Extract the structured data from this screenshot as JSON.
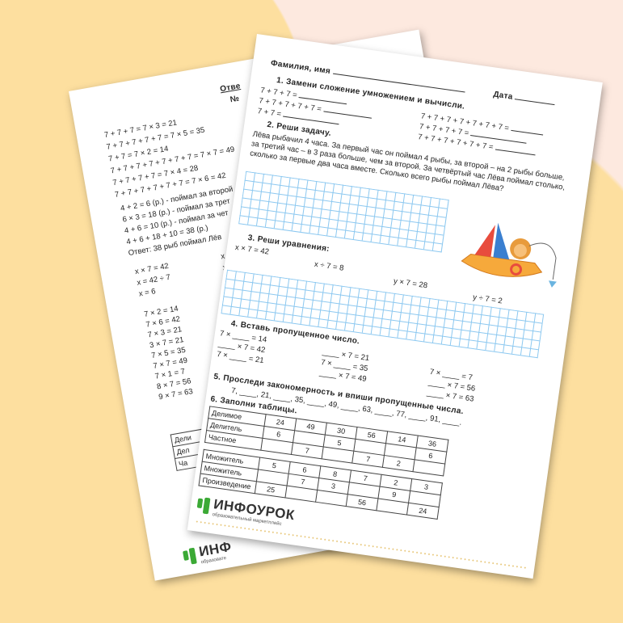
{
  "colors": {
    "background": "#fde9df",
    "blob": "#fddf9f",
    "grid": "#8cc8f0",
    "logo_green": "#3ba935"
  },
  "back_page": {
    "title_partial": "Отве",
    "number_partial": "№",
    "task1_answers": [
      "7 + 7 + 7 = 7 × 3 = 21",
      "7 + 7 + 7 + 7 + 7 = 7 × 5 = 35",
      "7 + 7 = 7 × 2 = 14",
      "7 + 7 + 7 + 7 + 7 + 7 + 7 = 7 × 7 = 49",
      "7 + 7 + 7 + 7 = 7 × 4 = 28",
      "7 + 7 + 7 + 7 + 7 + 7 = 7 × 6 = 42"
    ],
    "task2_answers": [
      "4 + 2 = 6 (р.) - поймал за второй",
      "6 × 3 = 18 (р.) - поймал за трет",
      "4 + 6 = 10 (р.) - поймал за чет",
      "4 + 6 + 18 + 10 = 38 (р.)",
      "Ответ: 38 рыб поймал Лёв"
    ],
    "task3_answers": [
      "x × 7 = 42",
      "x = 42 ÷ 7",
      "x = 6"
    ],
    "task3_answers_right": [
      "x ÷",
      "x",
      "x"
    ],
    "task4_answers": [
      "7 × 2 = 14",
      "7 × 6 = 42",
      "7 × 3 = 21",
      "3 × 7 = 21",
      "7 × 5 = 35",
      "7 × 7 = 49",
      "7 × 1 = 7",
      "8 × 7 = 56",
      "9 × 7 = 63"
    ],
    "table_labels_partial": [
      "Дели",
      "Дел",
      "Ча"
    ],
    "logo_text": "ИНФ",
    "logo_sub": "образовате"
  },
  "front_page": {
    "name_label": "Фамилия, имя",
    "date_label": "Дата",
    "task1": {
      "title": "1. Замени сложение умножением и вычисли.",
      "left": [
        "7 + 7 + 7 =",
        "7 + 7 + 7 + 7 + 7 =",
        "7 + 7 ="
      ],
      "right": [
        "7 + 7 + 7 + 7 + 7 + 7 + 7 =",
        "7 + 7 + 7 + 7 =",
        "7 + 7 + 7 + 7 + 7 + 7 ="
      ]
    },
    "task2": {
      "title": "2. Реши задачу.",
      "text": "Лёва рыбачил 4 часа. За первый час он поймал 4 рыбы, за второй – на 2 рыбы больше, за третий час – в 3 раза больше, чем за второй. За четвёртый час Лёва поймал столько, сколько за первые два часа вместе. Сколько всего рыбы поймал Лёва?"
    },
    "task3": {
      "title": "3. Реши уравнения:",
      "equations": [
        "x × 7 = 42",
        "x ÷ 7 = 8",
        "y × 7 = 28",
        "y ÷ 7 = 2"
      ]
    },
    "task4": {
      "title": "4. Вставь пропущенное число.",
      "col1": [
        "7 × ____ = 14",
        "____ × 7 = 42",
        "7 × ____ = 21"
      ],
      "col2": [
        "____ × 7 = 21",
        "7 × ____ = 35",
        "____ × 7 = 49"
      ],
      "col3": [
        "7 × ____ = 7",
        "____ × 7 = 56",
        "____ × 7 = 63"
      ]
    },
    "task5": {
      "title": "5. Проследи закономерность и впиши пропущенные числа.",
      "sequence": "7, ____, 21, ____, 35, ____, 49, ____, 63, ____, 77, ____, 91, ____."
    },
    "task6": {
      "title": "6. Заполни таблицы.",
      "table1": [
        [
          "Делимое",
          "24",
          "49",
          "30",
          "56",
          "14",
          "36"
        ],
        [
          "Делитель",
          "6",
          "",
          "5",
          "",
          "",
          "6"
        ],
        [
          "Частное",
          "",
          "7",
          "",
          "7",
          "2",
          ""
        ]
      ],
      "table2": [
        [
          "Множитель",
          "5",
          "6",
          "8",
          "7",
          "2",
          "3"
        ],
        [
          "Множитель",
          "",
          "7",
          "3",
          "",
          "9",
          ""
        ],
        [
          "Произведение",
          "25",
          "",
          "",
          "56",
          "",
          "24"
        ]
      ]
    },
    "logo_text": "ИНФОУРОК",
    "logo_sub": "образовательный маркетплейс"
  }
}
